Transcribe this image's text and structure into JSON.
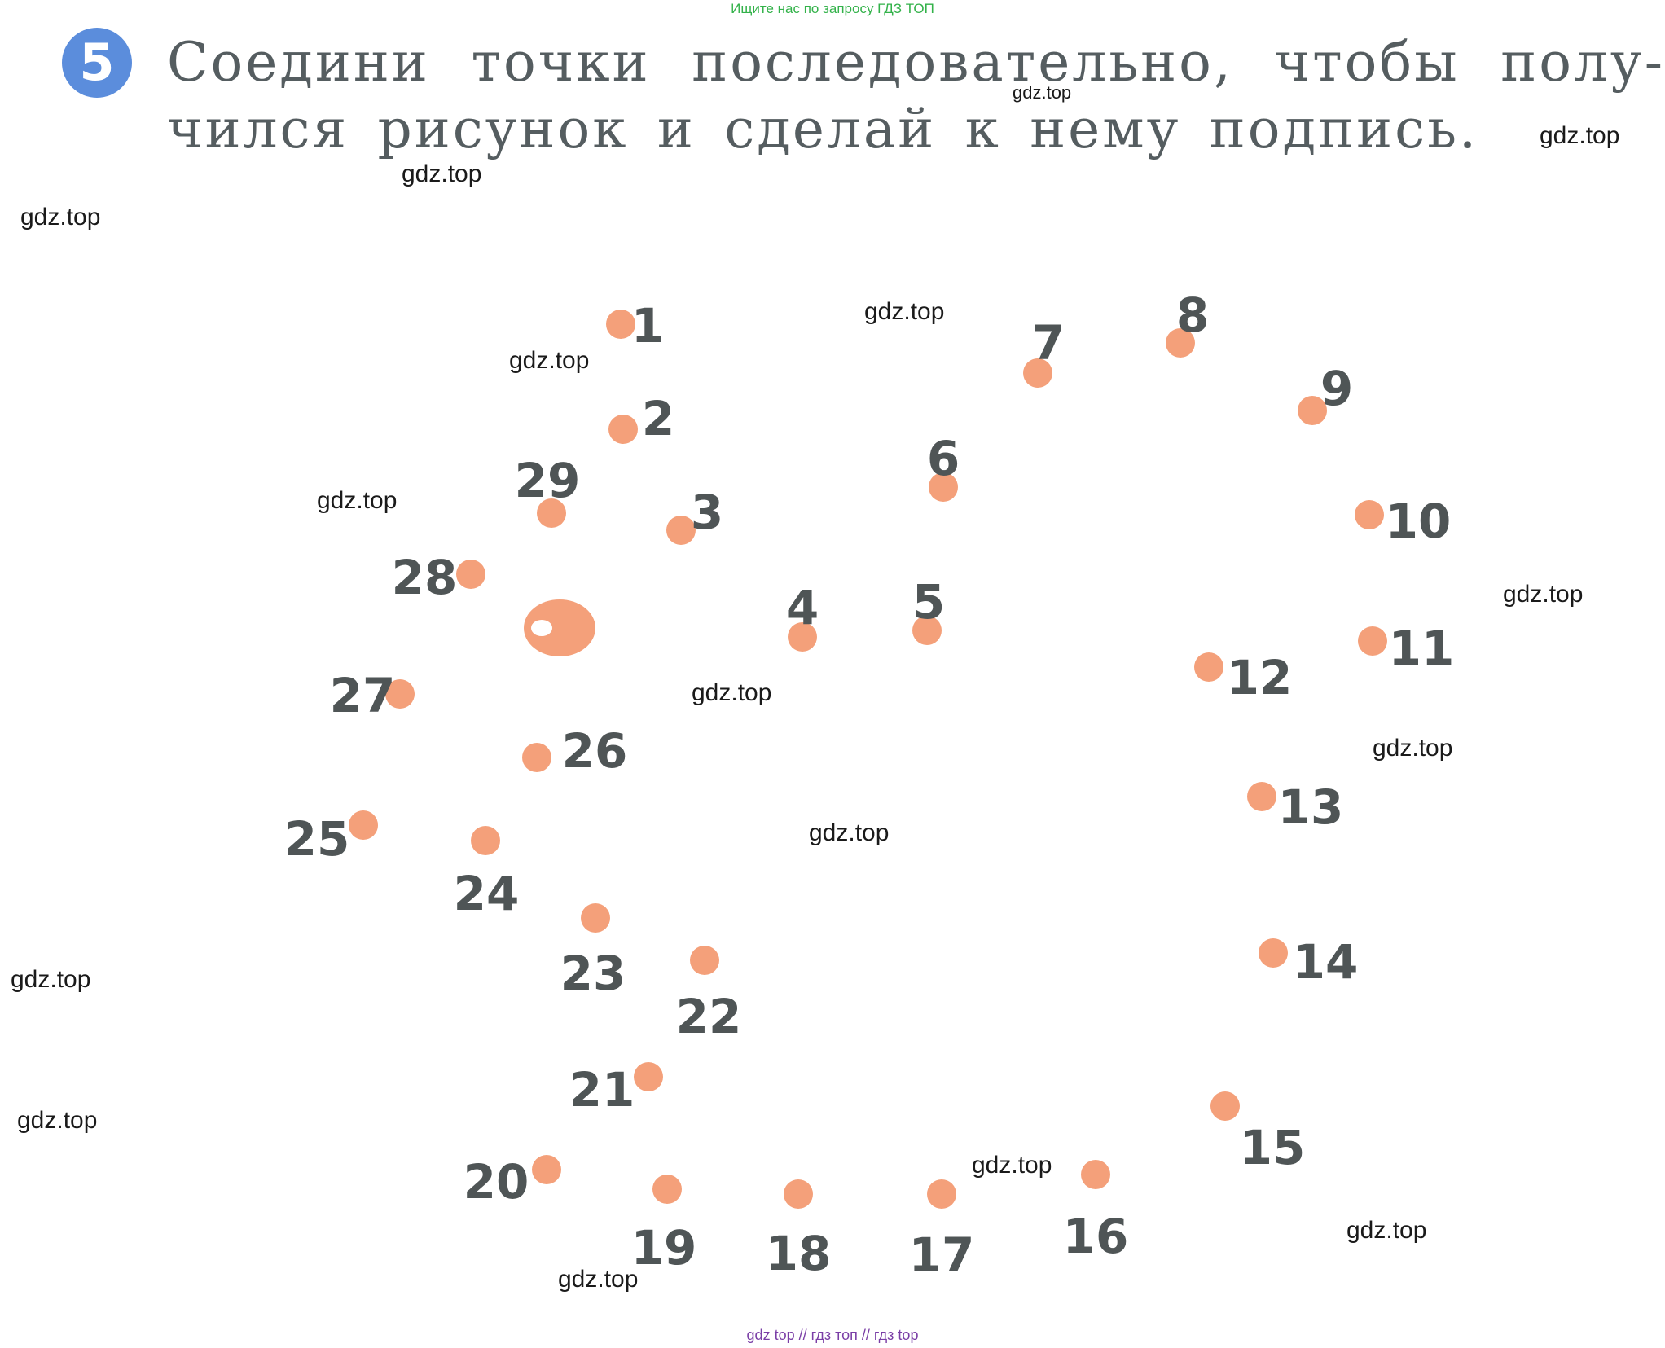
{
  "header": {
    "banner": "Ищите нас по запросу ГДЗ ТОП"
  },
  "task": {
    "number": "5",
    "line1": "Соедини точки последовательно, чтобы полу-",
    "line2": "чился рисунок и сделай к нему подпись."
  },
  "watermark_text": "gdz.top",
  "footer": {
    "banner": "gdz top  //  гдз топ  //  гдз top"
  },
  "colors": {
    "dot": "#f4a07a",
    "number": "#4f5556",
    "badge": "#5b8ddc",
    "eye_highlight": "#ffffff"
  },
  "dots": {
    "labels": [
      "1",
      "2",
      "3",
      "4",
      "5",
      "6",
      "7",
      "8",
      "9",
      "10",
      "11",
      "12",
      "13",
      "14",
      "15",
      "16",
      "17",
      "18",
      "19",
      "20",
      "21",
      "22",
      "23",
      "24",
      "25",
      "26",
      "27",
      "28",
      "29"
    ],
    "eye": "eye"
  }
}
